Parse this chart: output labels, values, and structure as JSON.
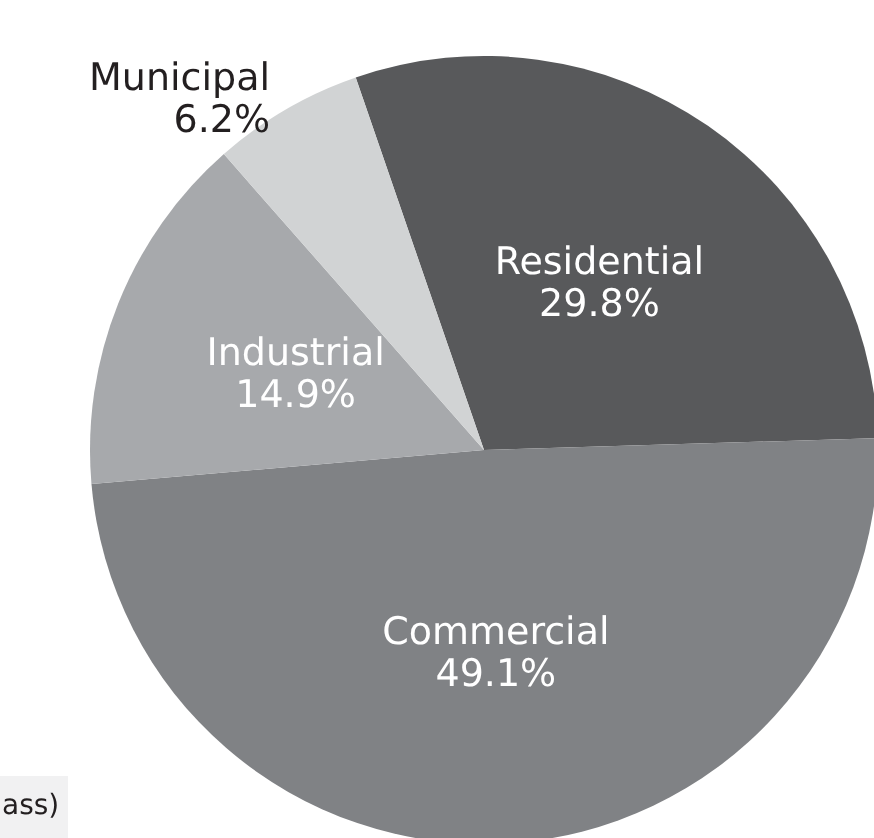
{
  "chart_data": {
    "type": "pie",
    "categories": [
      "Residential",
      "Commercial",
      "Industrial",
      "Municipal"
    ],
    "values": [
      29.8,
      49.1,
      14.9,
      6.2
    ],
    "value_labels": [
      "29.8%",
      "49.1%",
      "14.9%",
      "6.2%"
    ],
    "colors": [
      "#58595b",
      "#808285",
      "#a7a9ac",
      "#d1d3d4"
    ],
    "annotations": [
      "ass)"
    ]
  }
}
